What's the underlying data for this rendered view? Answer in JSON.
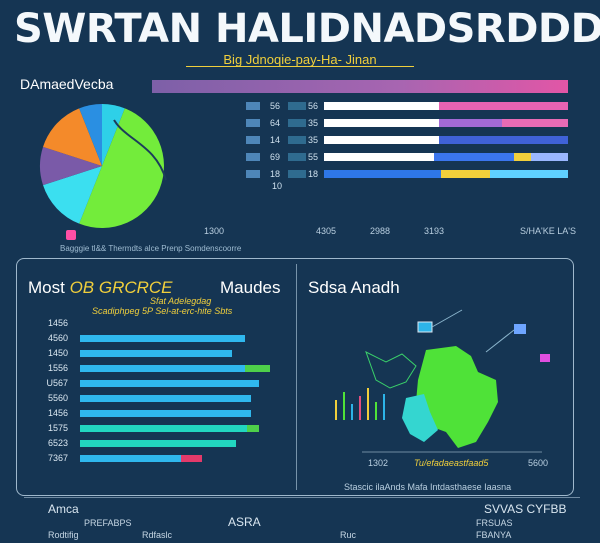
{
  "header": {
    "title": "SWRTAN HALIDNADSRDDD",
    "subtitle": "Big Jdnoqie-pay-Ha- Jinan"
  },
  "top_section": {
    "heading": "DAmaedVecba",
    "bars": [
      {
        "label": "56",
        "value_label": "56",
        "segments": [
          {
            "color": "#ffffff",
            "frac": 0.47
          },
          {
            "color": "#e863b2",
            "frac": 0.53
          }
        ]
      },
      {
        "label": "64",
        "value_label": "35",
        "segments": [
          {
            "color": "#ffffff",
            "frac": 0.47
          },
          {
            "color": "#a26ad6",
            "frac": 0.26
          },
          {
            "color": "#e86bb5",
            "frac": 0.27
          }
        ]
      },
      {
        "label": "14",
        "value_label": "35",
        "segments": [
          {
            "color": "#ffffff",
            "frac": 0.47
          },
          {
            "color": "#3f62d8",
            "frac": 0.53
          }
        ]
      },
      {
        "label": "69",
        "value_label": "55",
        "segments": [
          {
            "color": "#ffffff",
            "frac": 0.45
          },
          {
            "color": "#3b76ee",
            "frac": 0.33
          },
          {
            "color": "#f1cf3b",
            "frac": 0.07
          },
          {
            "color": "#9ab7ff",
            "frac": 0.15
          }
        ]
      },
      {
        "label": "18",
        "value_label": "18",
        "segments": [
          {
            "color": "#2e77e8",
            "frac": 0.48
          },
          {
            "color": "#f1cf3b",
            "frac": 0.2
          },
          {
            "color": "#5fd0ff",
            "frac": 0.32
          }
        ]
      }
    ],
    "last_tick": "10",
    "axis_ticks": [
      "1300",
      "4305",
      "2988",
      "3193"
    ],
    "axis_right": "S/HA'KE LA'S",
    "caption": "Bagggie tl&& Thermdts alce Prenp Somdenscoorre",
    "pie": {
      "slices": [
        {
          "name": "teal",
          "color": "#2ed0e8",
          "value": 6
        },
        {
          "name": "lime",
          "color": "#73ec3b",
          "value": 50
        },
        {
          "name": "cyan",
          "color": "#3bdff0",
          "value": 14
        },
        {
          "name": "purple",
          "color": "#7a5aa8",
          "value": 10
        },
        {
          "name": "orange",
          "color": "#f48a2a",
          "value": 14
        },
        {
          "name": "blue",
          "color": "#2a8fe2",
          "value": 6
        }
      ]
    }
  },
  "left_panel": {
    "title_a": "Most ",
    "title_b": "OB GRCRCE",
    "title_c": "Maudes",
    "sub1": "Sfat Adelegdag",
    "sub2": "Scadiphpeg 5P Sel-at-erc-hite Sbts",
    "bars": [
      {
        "label": "1456",
        "values": [
          {
            "color": "#2fb8ee",
            "frac": 0
          }
        ]
      },
      {
        "label": "4560",
        "values": [
          {
            "color": "#2fb8ee",
            "frac": 0.87
          }
        ]
      },
      {
        "label": "1450",
        "values": [
          {
            "color": "#2fb8ee",
            "frac": 0.8
          }
        ]
      },
      {
        "label": "1556",
        "values": [
          {
            "color": "#2fb8ee",
            "frac": 0.87
          },
          {
            "color": "#4ed04a",
            "frac": 0.13
          }
        ]
      },
      {
        "label": "U567",
        "values": [
          {
            "color": "#2fb8ee",
            "frac": 0.94
          }
        ]
      },
      {
        "label": "5560",
        "values": [
          {
            "color": "#2fb8ee",
            "frac": 0.9
          }
        ]
      },
      {
        "label": "1456",
        "values": [
          {
            "color": "#2fb8ee",
            "frac": 0.9
          }
        ]
      },
      {
        "label": "1575",
        "values": [
          {
            "color": "#22d6c0",
            "frac": 0.88
          },
          {
            "color": "#4ed04a",
            "frac": 0.06
          }
        ]
      },
      {
        "label": "6523",
        "values": [
          {
            "color": "#22d6c0",
            "frac": 0.82
          }
        ]
      },
      {
        "label": "7367",
        "values": [
          {
            "color": "#2fb8ee",
            "frac": 0.53
          },
          {
            "color": "#e33a6a",
            "frac": 0.11
          }
        ]
      }
    ]
  },
  "right_panel": {
    "title": "Sdsa Anadh",
    "axis_left": "1302",
    "axis_right": "5600",
    "axis_mid": "Tu/efadaeastfaad5",
    "caption": "Stascic ilaAnds Mafa Intdasthaese Iaasna"
  },
  "footer": {
    "left_title": "Amca",
    "left_sub": "PREFABPS",
    "left_row1": "Rodtifig",
    "left_row2": "Rdfaslc",
    "mid_title": "ASRA",
    "mid_row": "Ruc",
    "right_title": "SVVAS CYFBB",
    "right_row1": "FRSUAS",
    "right_row2": "FBANYA"
  }
}
